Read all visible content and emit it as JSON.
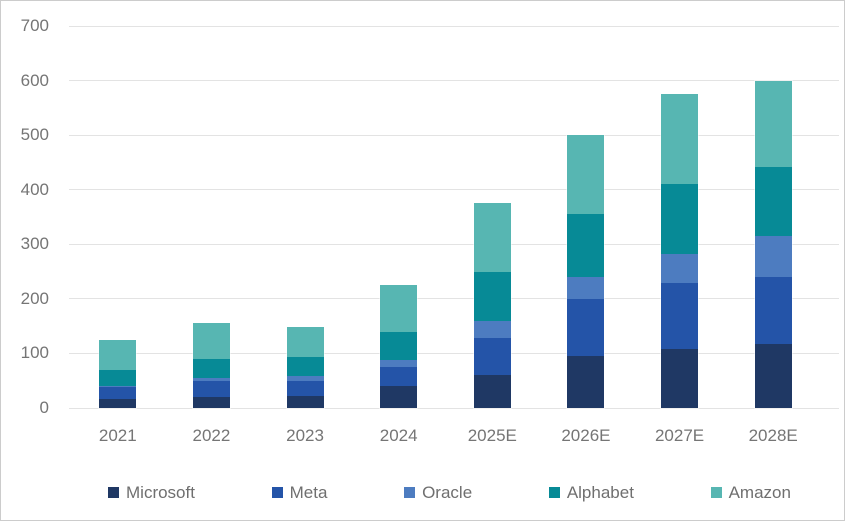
{
  "chart_data": {
    "type": "bar",
    "stacked": true,
    "title": "",
    "xlabel": "",
    "ylabel": "",
    "ylim": [
      0,
      700
    ],
    "ytick_interval": 100,
    "yticks": [
      0,
      100,
      200,
      300,
      400,
      500,
      600,
      700
    ],
    "grid": true,
    "legend_position": "bottom",
    "categories": [
      "2021",
      "2022",
      "2023",
      "2024",
      "2025E",
      "2026E",
      "2027E",
      "2028E"
    ],
    "series": [
      {
        "name": "Microsoft",
        "color": "#1F3864",
        "values": [
          16,
          20,
          22,
          40,
          60,
          95,
          108,
          118
        ]
      },
      {
        "name": "Meta",
        "color": "#2454A8",
        "values": [
          22,
          29,
          27,
          36,
          69,
          105,
          122,
          122
        ]
      },
      {
        "name": "Oracle",
        "color": "#4D7CC0",
        "values": [
          3,
          7,
          10,
          12,
          31,
          40,
          53,
          76
        ]
      },
      {
        "name": "Alphabet",
        "color": "#078A96",
        "values": [
          28,
          34,
          34,
          51,
          90,
          115,
          127,
          125
        ]
      },
      {
        "name": "Amazon",
        "color": "#57B6B2",
        "values": [
          56,
          65,
          55,
          86,
          125,
          145,
          165,
          159
        ]
      }
    ],
    "stack_totals": [
      125,
      155,
      148,
      225,
      375,
      500,
      575,
      600
    ]
  },
  "style_colors": {
    "gridline": "#e3e3e3",
    "axis_text": "#757575",
    "legend_text": "#6f6f6f",
    "frame_border": "#cccccc",
    "background": "#ffffff"
  }
}
